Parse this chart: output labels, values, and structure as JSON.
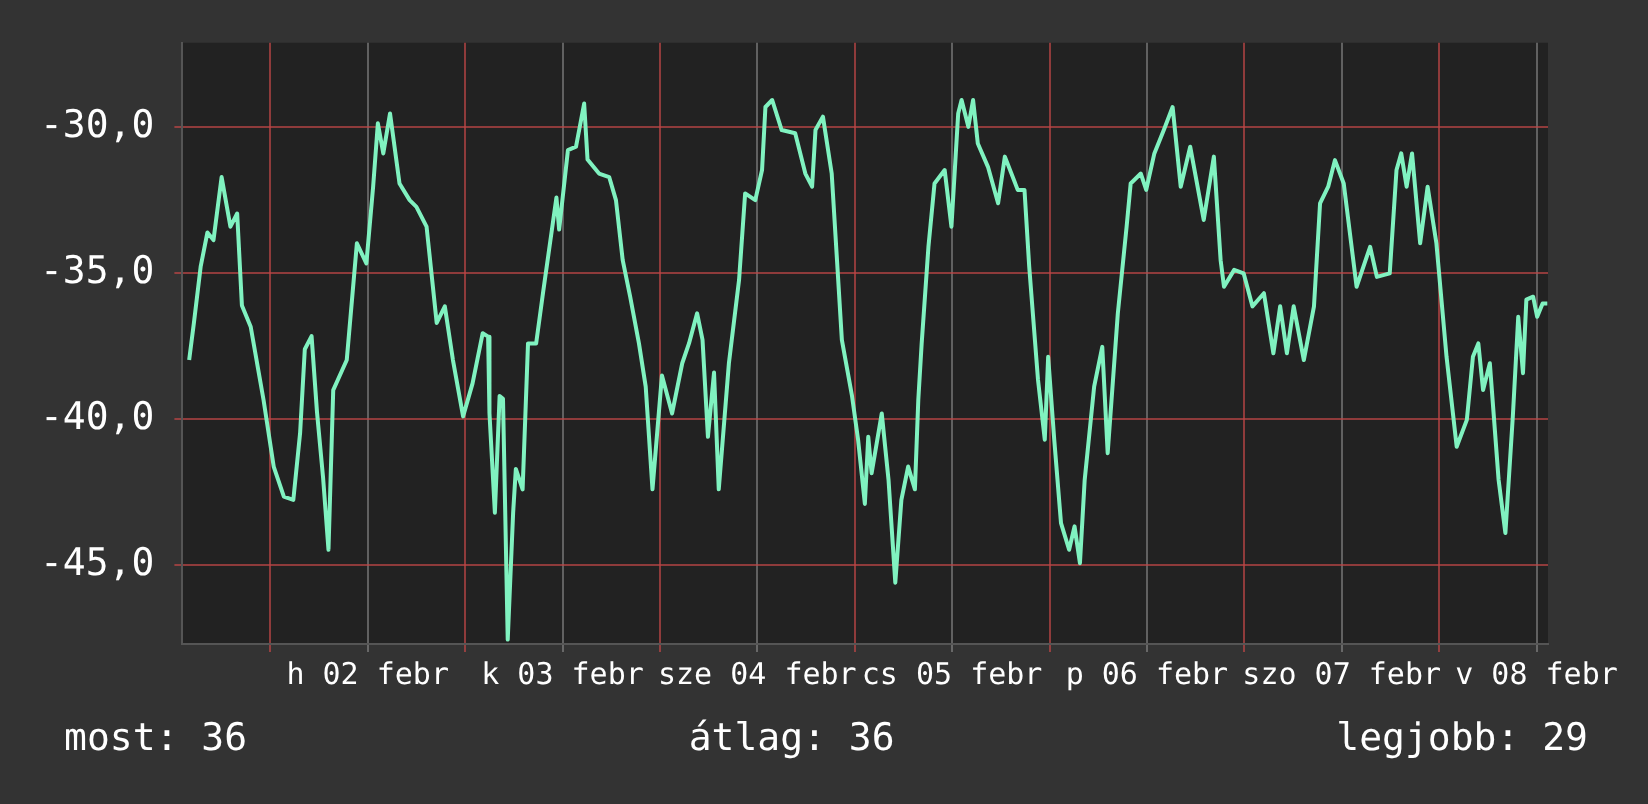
{
  "chart_data": {
    "type": "line",
    "x": [
      "--02-01T14:00",
      "--02-01T14:35",
      "--02-01T15:25",
      "--02-01T16:15",
      "--02-01T17:00",
      "--02-01T18:00",
      "--02-01T19:05",
      "--02-01T19:55",
      "--02-01T20:30",
      "--02-01T21:35",
      "--02-01T23:10",
      "--02-02T00:25",
      "--02-02T01:40",
      "--02-02T02:50",
      "--02-02T03:40",
      "--02-02T04:15",
      "--02-02T05:05",
      "--02-02T05:45",
      "--02-02T06:30",
      "--02-02T07:10",
      "--02-02T07:45",
      "--02-02T09:25",
      "--02-02T10:40",
      "--02-02T11:50",
      "--02-02T12:40",
      "--02-02T13:15",
      "--02-02T13:55",
      "--02-02T14:45",
      "--02-02T15:55",
      "--02-02T17:10",
      "--02-02T18:00",
      "--02-02T19:15",
      "--02-02T20:30",
      "--02-02T21:30",
      "--02-02T22:30",
      "--02-02T23:45",
      "--02-03T00:55",
      "--02-03T02:10",
      "--02-03T02:50",
      "--02-03T03:00",
      "--02-03T03:40",
      "--02-03T04:15",
      "--02-03T04:40",
      "--02-03T05:15",
      "--02-03T05:55",
      "--02-03T06:15",
      "--02-03T07:05",
      "--02-03T07:45",
      "--02-03T08:45",
      "--02-03T09:35",
      "--02-03T11:15",
      "--02-03T11:35",
      "--02-03T12:40",
      "--02-03T13:40",
      "--02-03T14:40",
      "--02-03T15:05",
      "--02-03T16:30",
      "--02-03T17:45",
      "--02-03T18:35",
      "--02-03T19:25",
      "--02-03T20:20",
      "--02-03T21:25",
      "--02-03T22:15",
      "--02-03T23:05",
      "--02-04T00:15",
      "--02-04T01:30",
      "--02-04T02:45",
      "--02-04T03:35",
      "--02-04T04:35",
      "--02-04T05:15",
      "--02-04T05:55",
      "--02-04T06:40",
      "--02-04T07:15",
      "--02-04T08:30",
      "--02-04T09:45",
      "--02-04T10:30",
      "--02-04T11:45",
      "--02-04T12:35",
      "--02-04T13:00",
      "--02-04T13:50",
      "--02-04T15:00",
      "--02-04T16:40",
      "--02-04T17:55",
      "--02-04T18:45",
      "--02-04T19:10",
      "--02-04T20:05",
      "--02-04T21:10",
      "--02-04T22:25",
      "--02-04T23:40",
      "--02-05T00:25",
      "--02-05T01:15",
      "--02-05T01:40",
      "--02-05T02:05",
      "--02-05T03:20",
      "--02-05T04:10",
      "--02-05T05:00",
      "--02-05T05:45",
      "--02-05T06:35",
      "--02-05T07:25",
      "--02-05T07:50",
      "--02-05T08:15",
      "--02-05T09:05",
      "--02-05T09:50",
      "--02-05T11:05",
      "--02-05T11:55",
      "--02-05T12:45",
      "--02-05T13:10",
      "--02-05T14:00",
      "--02-05T14:35",
      "--02-05T15:10",
      "--02-05T16:25",
      "--02-05T17:40",
      "--02-05T18:30",
      "--02-05T20:05",
      "--02-05T20:55",
      "--02-05T21:30",
      "--02-05T22:35",
      "--02-05T23:25",
      "--02-05T23:50",
      "--02-06T00:35",
      "--02-06T01:25",
      "--02-06T02:25",
      "--02-06T03:05",
      "--02-06T03:45",
      "--02-06T04:20",
      "--02-06T05:30",
      "--02-06T06:30",
      "--02-06T07:10",
      "--02-06T08:25",
      "--02-06T09:30",
      "--02-06T10:00",
      "--02-06T11:15",
      "--02-06T11:55",
      "--02-06T12:55",
      "--02-06T14:05",
      "--02-06T15:10",
      "--02-06T16:10",
      "--02-06T17:20",
      "--02-06T19:00",
      "--02-06T20:15",
      "--02-06T21:05",
      "--02-06T21:30",
      "--02-06T22:45",
      "--02-06T23:55",
      "--02-07T01:00",
      "--02-07T02:25",
      "--02-07T03:35",
      "--02-07T04:25",
      "--02-07T05:15",
      "--02-07T06:05",
      "--02-07T07:20",
      "--02-07T08:35",
      "--02-07T09:20",
      "--02-07T10:20",
      "--02-07T11:10",
      "--02-07T12:15",
      "--02-07T13:50",
      "--02-07T15:30",
      "--02-07T16:20",
      "--02-07T17:55",
      "--02-07T18:45",
      "--02-07T19:20",
      "--02-07T20:00",
      "--02-07T20:40",
      "--02-07T21:40",
      "--02-07T22:35",
      "--02-07T23:40",
      "--02-08T00:55",
      "--02-08T02:10",
      "--02-08T03:25",
      "--02-08T04:10",
      "--02-08T04:50",
      "--02-08T05:25",
      "--02-08T06:15",
      "--02-08T07:20",
      "--02-08T08:10",
      "--02-08T09:05",
      "--02-08T09:45",
      "--02-08T10:20",
      "--02-08T10:45",
      "--02-08T11:35",
      "--02-08T12:05",
      "--02-08T12:45",
      "--02-08T13:20"
    ],
    "series": [
      {
        "color": "#80f2c0",
        "values": [
          -37.97,
          -36.7,
          -34.77,
          -33.6,
          -33.86,
          -31.7,
          -33.4,
          -32.95,
          -36.1,
          -36.83,
          -39.34,
          -41.62,
          -42.65,
          -42.76,
          -40.48,
          -37.6,
          -37.15,
          -39.75,
          -42.0,
          -44.47,
          -39.0,
          -37.97,
          -33.97,
          -34.66,
          -32.03,
          -29.86,
          -30.89,
          -29.52,
          -31.92,
          -32.49,
          -32.72,
          -33.4,
          -36.7,
          -36.13,
          -37.97,
          -39.9,
          -38.77,
          -37.05,
          -37.17,
          -39.8,
          -43.2,
          -39.2,
          -39.3,
          -47.55,
          -43.2,
          -41.7,
          -42.4,
          -37.4,
          -37.4,
          -35.7,
          -32.4,
          -33.5,
          -30.78,
          -30.66,
          -29.18,
          -31.1,
          -31.58,
          -31.7,
          -32.49,
          -34.55,
          -35.8,
          -37.4,
          -38.88,
          -42.4,
          -38.5,
          -39.8,
          -38.08,
          -37.4,
          -36.37,
          -37.28,
          -40.6,
          -38.4,
          -42.4,
          -38.08,
          -35.23,
          -32.26,
          -32.49,
          -31.46,
          -29.3,
          -29.06,
          -30.09,
          -30.2,
          -31.58,
          -32.03,
          -30.09,
          -29.63,
          -31.58,
          -37.28,
          -39.2,
          -40.7,
          -42.9,
          -40.6,
          -41.85,
          -39.8,
          -42.08,
          -45.6,
          -42.76,
          -41.62,
          -42.4,
          -39.34,
          -37.4,
          -34.09,
          -31.92,
          -31.46,
          -33.4,
          -29.52,
          -29.06,
          -29.98,
          -29.06,
          -30.55,
          -31.35,
          -32.6,
          -31.0,
          -32.14,
          -32.14,
          -34.77,
          -38.65,
          -40.7,
          -37.86,
          -40.7,
          -43.56,
          -44.47,
          -43.67,
          -44.93,
          -42.08,
          -38.88,
          -37.52,
          -41.16,
          -36.37,
          -33.4,
          -31.92,
          -31.58,
          -32.14,
          -30.89,
          -30.09,
          -29.3,
          -32.03,
          -30.66,
          -33.17,
          -31.0,
          -34.55,
          -35.46,
          -34.88,
          -35.0,
          -36.13,
          -35.68,
          -37.74,
          -36.13,
          -37.74,
          -36.13,
          -37.97,
          -36.13,
          -32.6,
          -32.03,
          -31.12,
          -31.92,
          -35.46,
          -34.09,
          -35.12,
          -35.0,
          -31.46,
          -30.89,
          -32.03,
          -30.89,
          -33.97,
          -32.03,
          -33.97,
          -37.86,
          -40.94,
          -40.02,
          -37.86,
          -37.4,
          -39.0,
          -38.08,
          -42.08,
          -43.9,
          -39.9,
          -36.49,
          -38.42,
          -35.9,
          -35.8,
          -36.49,
          -36.03,
          -36.03
        ]
      }
    ],
    "xlim": [
      "--02-01T13:10",
      "--02-08T13:25"
    ],
    "xticks": [
      {
        "value": "--02-02T00:00",
        "label": null
      },
      {
        "value": "--02-02T12:00",
        "label": "h 02 febr"
      },
      {
        "value": "--02-03T00:00",
        "label": null
      },
      {
        "value": "--02-03T12:00",
        "label": "k 03 febr"
      },
      {
        "value": "--02-04T00:00",
        "label": null
      },
      {
        "value": "--02-04T12:00",
        "label": "sze 04 febr"
      },
      {
        "value": "--02-05T00:00",
        "label": null
      },
      {
        "value": "--02-05T12:00",
        "label": "cs 05 febr"
      },
      {
        "value": "--02-06T00:00",
        "label": null
      },
      {
        "value": "--02-06T12:00",
        "label": "p 06 febr"
      },
      {
        "value": "--02-07T00:00",
        "label": null
      },
      {
        "value": "--02-07T12:00",
        "label": "szo 07 febr"
      },
      {
        "value": "--02-08T00:00",
        "label": null
      },
      {
        "value": "--02-08T12:00",
        "label": "v 08 febr"
      }
    ],
    "ylim": [
      -47.7,
      -27.1
    ],
    "yticks": [
      {
        "value": -30,
        "label": "-30,0"
      },
      {
        "value": -35,
        "label": "-35,0"
      },
      {
        "value": -40,
        "label": "-40,0"
      },
      {
        "value": -45,
        "label": "-45,0"
      }
    ],
    "grid": true,
    "legend": false,
    "marker": "none",
    "annotations": [
      "most: 36",
      "átlag: 36",
      "legjobb: 29"
    ]
  }
}
